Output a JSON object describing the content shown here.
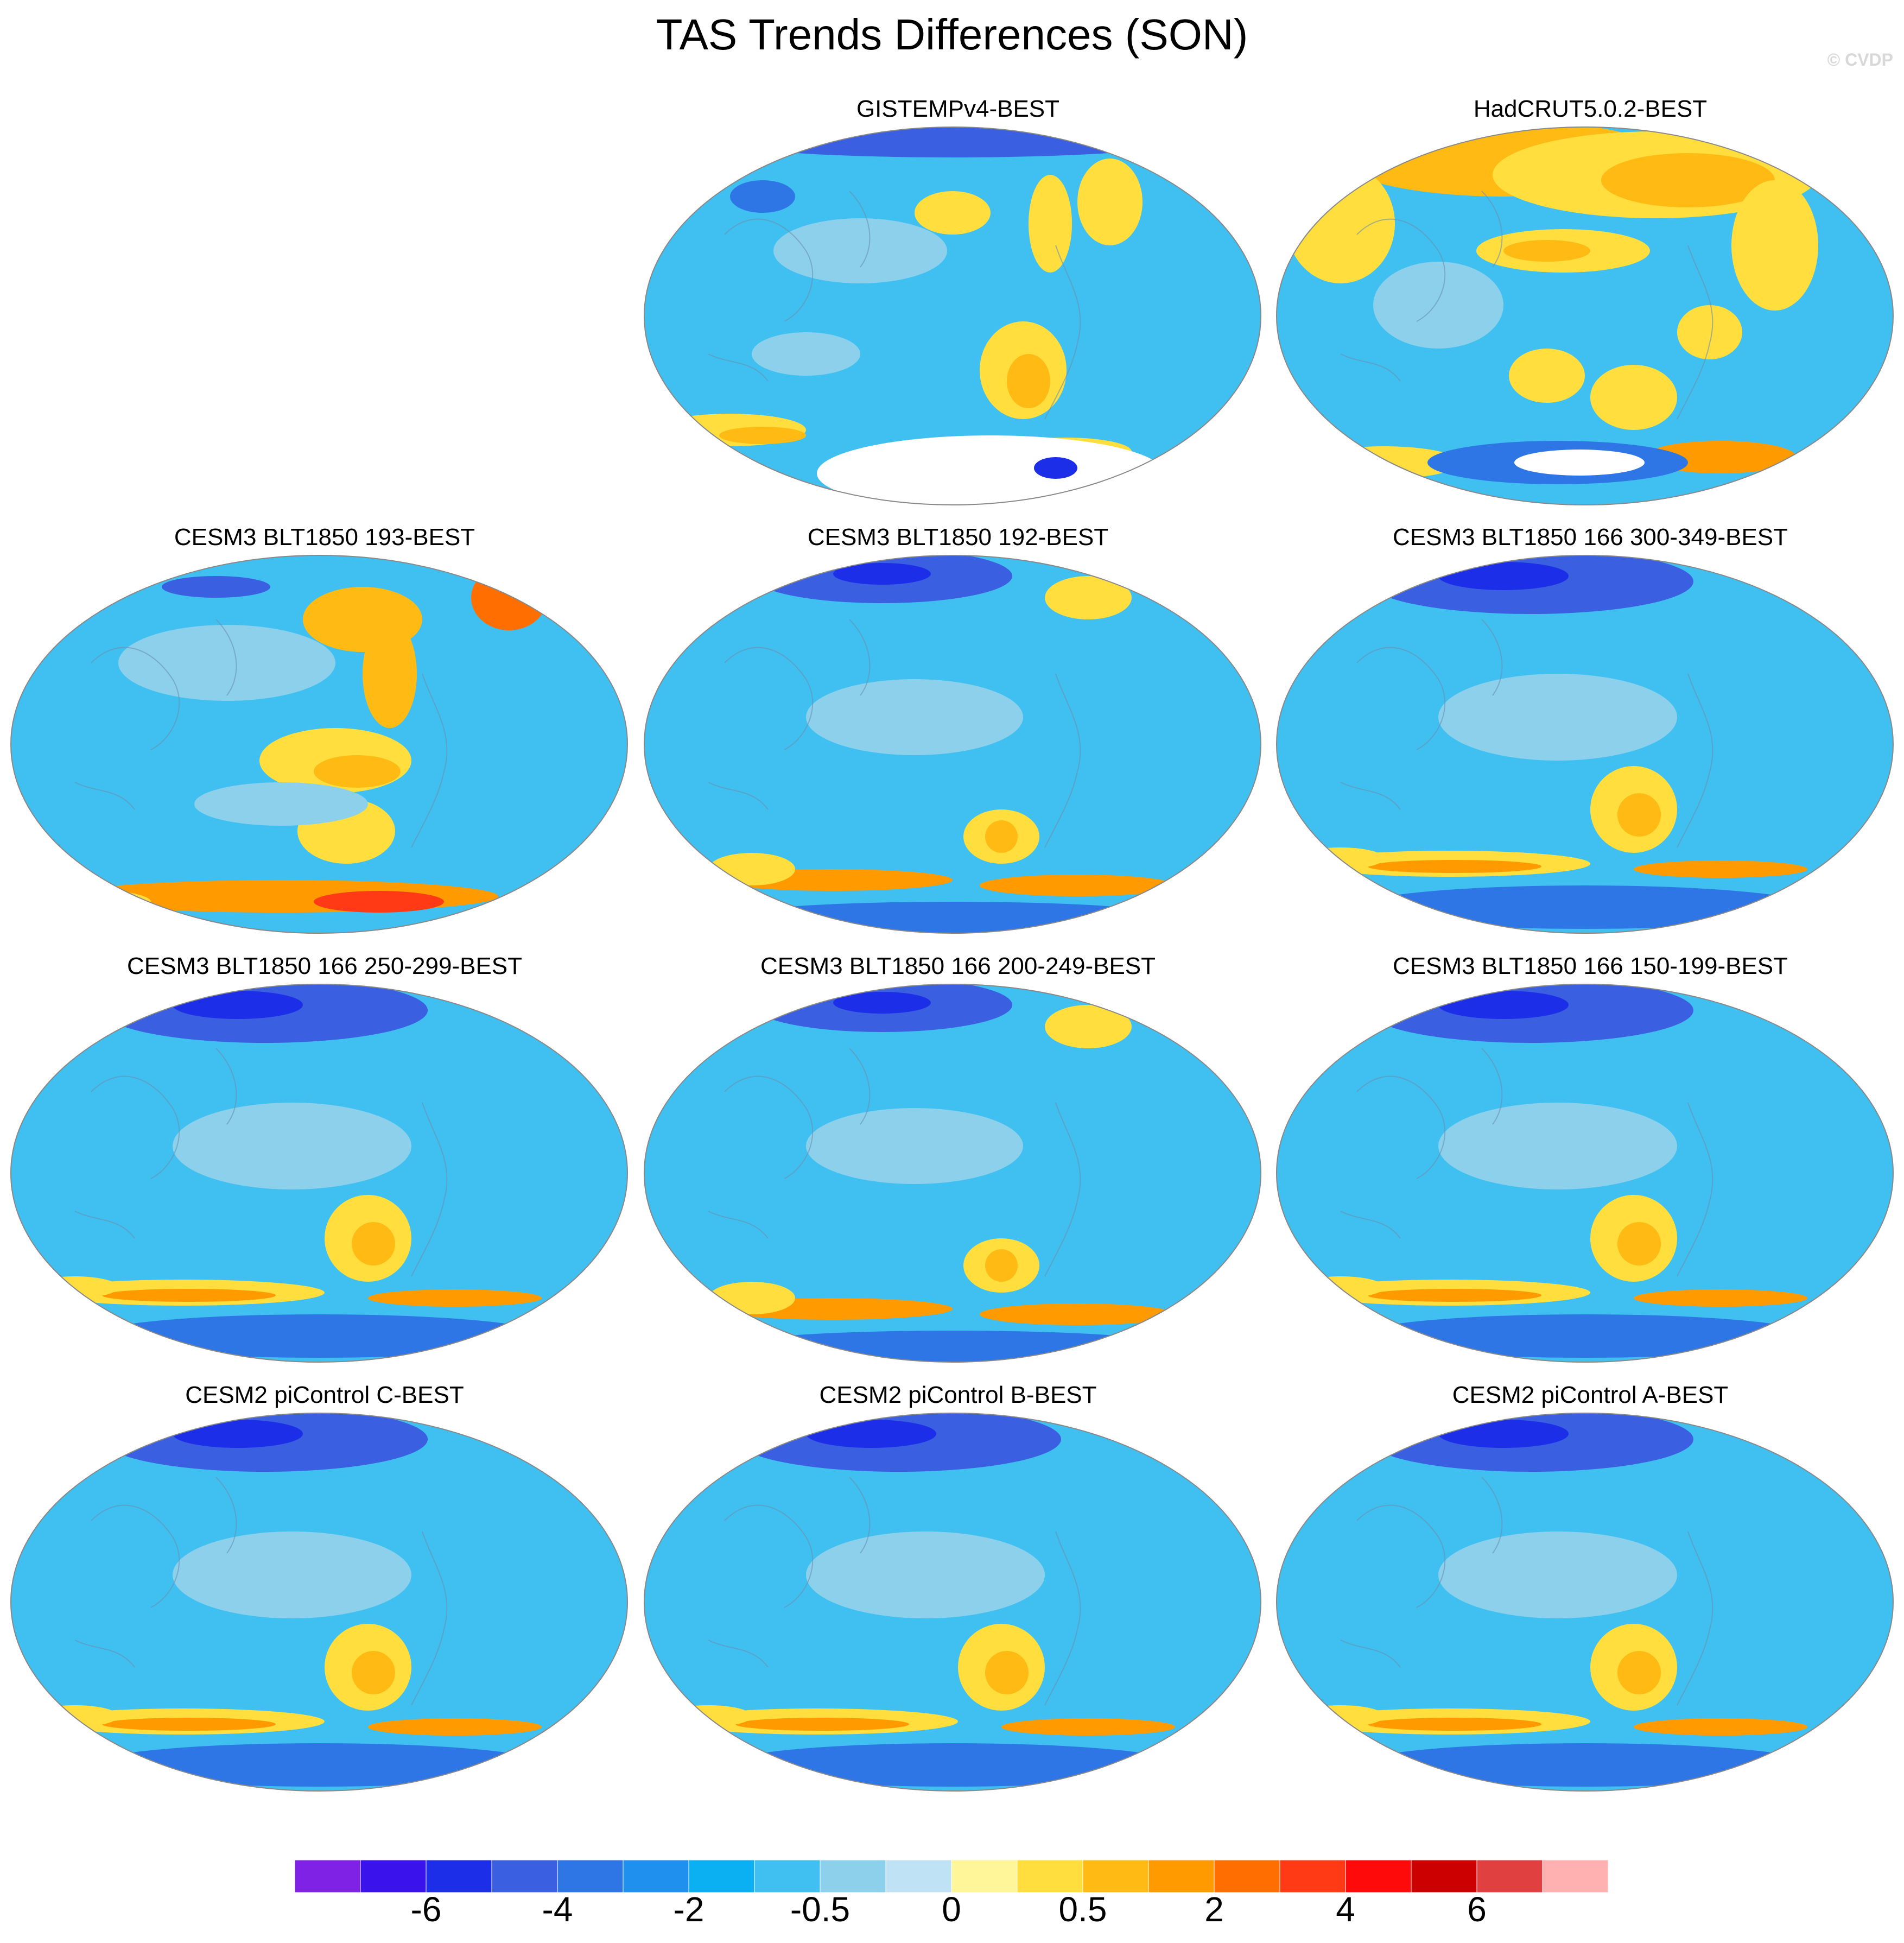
{
  "title": "TAS Trends Differences (SON)",
  "watermark": "© CVDP",
  "panels": [
    {
      "label": "GISTEMPv4-BEST",
      "pattern": "gistemp"
    },
    {
      "label": "HadCRUT5.0.2-BEST",
      "pattern": "hadcrut"
    },
    {
      "label": "CESM3 BLT1850 193-BEST",
      "pattern": "warm"
    },
    {
      "label": "CESM3 BLT1850 192-BEST",
      "pattern": "mixed"
    },
    {
      "label": "CESM3 BLT1850 166 300-349-BEST",
      "pattern": "cool"
    },
    {
      "label": "CESM3 BLT1850 166 250-299-BEST",
      "pattern": "cool"
    },
    {
      "label": "CESM3 BLT1850 166 200-249-BEST",
      "pattern": "mixed"
    },
    {
      "label": "CESM3 BLT1850 166 150-199-BEST",
      "pattern": "cool"
    },
    {
      "label": "CESM2 piControl C-BEST",
      "pattern": "cool"
    },
    {
      "label": "CESM2 piControl B-BEST",
      "pattern": "cool"
    },
    {
      "label": "CESM2 piControl A-BEST",
      "pattern": "cool"
    }
  ],
  "colorbar": {
    "colors": [
      "#7f22e6",
      "#3a12ec",
      "#1c2ee8",
      "#3a5fe0",
      "#2e76e6",
      "#1f90ee",
      "#0bb0f2",
      "#3fc0f0",
      "#8dd0ec",
      "#bfe2f4",
      "#fff69a",
      "#ffde3e",
      "#ffbb14",
      "#ff9a00",
      "#ff6e00",
      "#ff3a14",
      "#ff0a0a",
      "#cc0000",
      "#e04040",
      "#ffb0b0"
    ],
    "labels": [
      "-6",
      "-4",
      "-2",
      "-0.5",
      "0",
      "0.5",
      "2",
      "4",
      "6"
    ]
  }
}
